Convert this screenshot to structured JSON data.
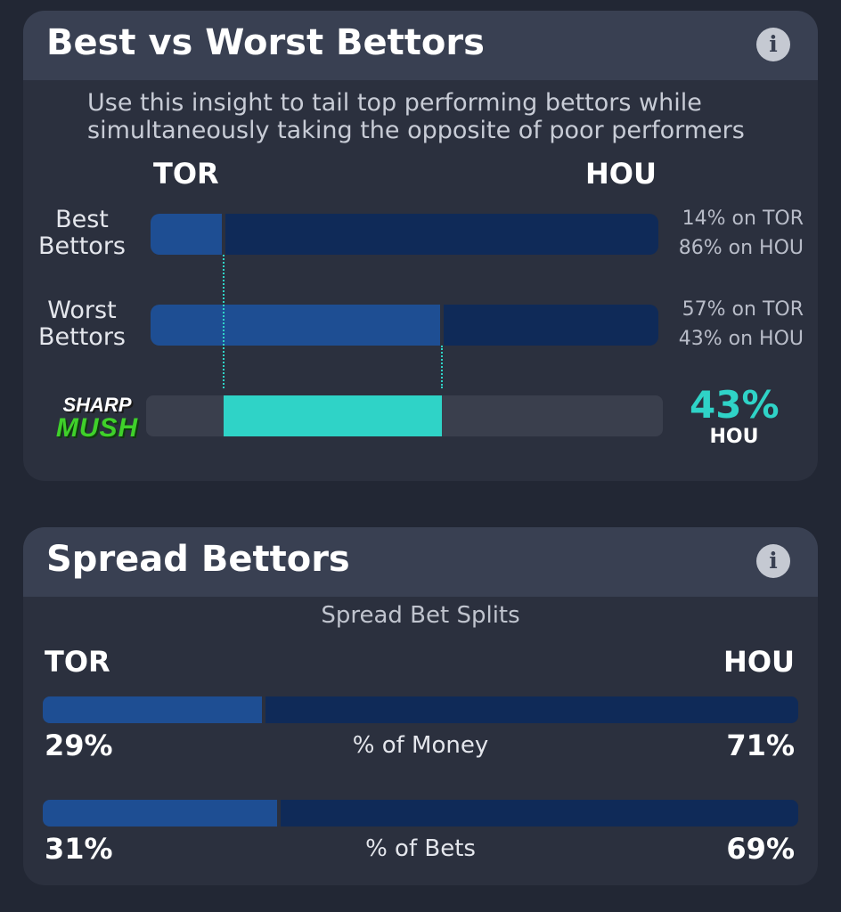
{
  "best_vs_worst": {
    "title": "Best vs Worst Bettors",
    "info_icon": "info-icon",
    "subtitle": "Use this insight to tail top performing bettors while simultaneously taking the opposite of poor performers",
    "team_left": "TOR",
    "team_right": "HOU",
    "best": {
      "label": "Best Bettors",
      "left_share": 0.14,
      "line1": "14% on TOR",
      "line2": "86% on HOU"
    },
    "worst": {
      "label": "Worst Bettors",
      "left_share": 0.57,
      "line1": "57% on TOR",
      "line2": "43% on HOU"
    },
    "sharp": {
      "logo_top": "SHARP",
      "logo_bottom": "MUSH",
      "value": "43%",
      "team": "HOU",
      "accent": "#2fd3c7"
    }
  },
  "spread": {
    "title": "Spread Bettors",
    "info_icon": "info-icon",
    "splits_title": "Spread Bet Splits",
    "team_left": "TOR",
    "team_right": "HOU",
    "money": {
      "label": "% of Money",
      "left_share": 0.29,
      "left_value": "29%",
      "right_value": "71%"
    },
    "bets": {
      "label": "% of Bets",
      "left_share": 0.31,
      "left_value": "31%",
      "right_value": "69%"
    }
  },
  "colors": {
    "background": "#222734",
    "card": "#2b303e",
    "header": "#394052",
    "bar_light": "#1e4e93",
    "bar_dark": "#0f2a58",
    "accent": "#2fd3c7"
  }
}
